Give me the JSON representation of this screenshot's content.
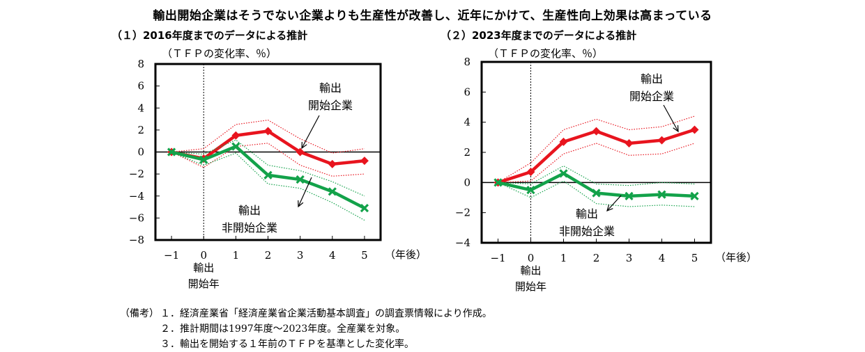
{
  "headline": "輸出開始企業はそうでない企業よりも生産性が改善し、近年にかけて、生産性向上効果は高まっている",
  "colors": {
    "start": "#e8141e",
    "nonstart": "#13a24a",
    "axis": "#000000"
  },
  "chart_data": [
    {
      "type": "line",
      "title": "（１）2016年度までのデータによる推計",
      "ylabel": "（ＴＦＰの変化率、％）",
      "xlabel": "（年後）",
      "x": [
        -1,
        0,
        1,
        2,
        3,
        4,
        5
      ],
      "x_tick_labels": [
        "−1",
        "0",
        "1",
        "2",
        "3",
        "4",
        "5"
      ],
      "ylim": [
        -8,
        8
      ],
      "y_ticks": [
        8,
        6,
        4,
        2,
        0,
        -2,
        -4,
        -6,
        -8
      ],
      "y_tick_labels": [
        "8",
        "6",
        "4",
        "2",
        "0",
        "−2",
        "−4",
        "−6",
        "−8"
      ],
      "marker_text": [
        "輸出",
        "開始年"
      ],
      "series": [
        {
          "name": "輸出開始企業",
          "label_lines": [
            "輸出",
            "開始企業"
          ],
          "values": [
            0,
            -0.6,
            1.5,
            1.9,
            0.0,
            -1.1,
            -0.8
          ],
          "upper": [
            0,
            0.3,
            2.5,
            2.9,
            1.2,
            -0.1,
            0.3
          ],
          "lower": [
            0,
            -1.4,
            0.5,
            0.8,
            -1.2,
            -2.2,
            -2.0
          ]
        },
        {
          "name": "輸出非開始企業",
          "label_lines": [
            "輸出",
            "非開始企業"
          ],
          "values": [
            0,
            -0.7,
            0.5,
            -2.1,
            -2.5,
            -3.6,
            -5.1
          ],
          "upper": [
            0,
            -0.2,
            1.1,
            -1.2,
            -1.7,
            -2.7,
            -4.0
          ],
          "lower": [
            0,
            -1.2,
            -0.1,
            -2.9,
            -3.3,
            -4.6,
            -6.2
          ]
        }
      ]
    },
    {
      "type": "line",
      "title": "（２）2023年度までのデータによる推計",
      "ylabel": "（ＴＦＰの変化率、％）",
      "xlabel": "（年後）",
      "x": [
        -1,
        0,
        1,
        2,
        3,
        4,
        5
      ],
      "x_tick_labels": [
        "−1",
        "0",
        "1",
        "2",
        "3",
        "4",
        "5"
      ],
      "ylim": [
        -4,
        8
      ],
      "y_ticks": [
        8,
        6,
        4,
        2,
        0,
        -2,
        -4
      ],
      "y_tick_labels": [
        "8",
        "6",
        "4",
        "2",
        "0",
        "−2",
        "−4"
      ],
      "marker_text": [
        "輸出",
        "開始年"
      ],
      "series": [
        {
          "name": "輸出開始企業",
          "label_lines": [
            "輸出",
            "開始企業"
          ],
          "values": [
            0,
            0.7,
            2.7,
            3.4,
            2.6,
            2.8,
            3.5
          ],
          "upper": [
            0,
            1.3,
            3.5,
            4.2,
            3.5,
            3.7,
            4.4
          ],
          "lower": [
            0,
            0.1,
            1.9,
            2.6,
            1.8,
            1.9,
            2.6
          ]
        },
        {
          "name": "輸出非開始企業",
          "label_lines": [
            "輸出",
            "非開始企業"
          ],
          "values": [
            0,
            -0.5,
            0.6,
            -0.7,
            -0.9,
            -0.8,
            -0.9
          ],
          "upper": [
            0,
            -0.1,
            1.1,
            -0.1,
            -0.2,
            0.0,
            -0.1
          ],
          "lower": [
            0,
            -1.0,
            0.1,
            -1.4,
            -1.6,
            -1.5,
            -1.6
          ]
        }
      ]
    }
  ],
  "notes": {
    "label": "（備考）",
    "items": [
      "１．経済産業省「経済産業省企業活動基本調査」の調査票情報により作成。",
      "２．推計期間は1997年度～2023年度。全産業を対象。",
      "３．輸出を開始する１年前のＴＦＰを基準とした変化率。"
    ]
  }
}
